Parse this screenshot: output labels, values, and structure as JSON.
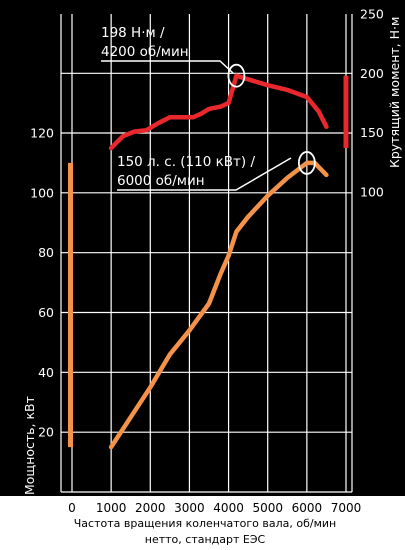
{
  "chart_data": {
    "type": "line",
    "x_label": "Частота вращения коленчатого вала, об/мин",
    "x_caption_line2": "нетто, стандарт ЕЭС",
    "y_left_label": "Мощность, кВт",
    "y_right_label": "Крутящий момент, Н·м",
    "x_ticks": [
      0,
      1000,
      2000,
      3000,
      4000,
      5000,
      6000,
      7000
    ],
    "y_left_ticks": [
      20,
      40,
      60,
      80,
      100,
      120
    ],
    "y_right_ticks": [
      100,
      150,
      200,
      250
    ],
    "x_range": [
      0,
      7000
    ],
    "y_left_range": [
      0,
      160
    ],
    "y_right_range": [
      0,
      250
    ],
    "grid": true,
    "colors": {
      "background": "#000000",
      "grid": "#ffffff",
      "power": "#f5924a",
      "torque": "#e8282d",
      "annotation": "#ffffff"
    },
    "series": [
      {
        "key": "torque",
        "axis": "right",
        "points": [
          [
            1000,
            137
          ],
          [
            1300,
            147
          ],
          [
            1600,
            151
          ],
          [
            1900,
            152
          ],
          [
            2200,
            158
          ],
          [
            2500,
            163
          ],
          [
            2800,
            163
          ],
          [
            3100,
            163
          ],
          [
            3300,
            166
          ],
          [
            3500,
            170
          ],
          [
            3800,
            172
          ],
          [
            4000,
            175
          ],
          [
            4200,
            198
          ],
          [
            4500,
            195
          ],
          [
            5000,
            190
          ],
          [
            5500,
            186
          ],
          [
            6000,
            180
          ],
          [
            6300,
            168
          ],
          [
            6500,
            155
          ]
        ]
      },
      {
        "key": "power",
        "axis": "left",
        "points": [
          [
            1000,
            15
          ],
          [
            1500,
            25
          ],
          [
            2000,
            35
          ],
          [
            2500,
            46
          ],
          [
            3000,
            54
          ],
          [
            3500,
            63
          ],
          [
            3800,
            73
          ],
          [
            4000,
            79
          ],
          [
            4200,
            87
          ],
          [
            4500,
            92
          ],
          [
            5000,
            99
          ],
          [
            5500,
            105
          ],
          [
            6000,
            110
          ],
          [
            6200,
            110
          ],
          [
            6500,
            106
          ]
        ]
      }
    ],
    "annotations": [
      {
        "lines": [
          "198 Н·м /",
          "4200 об/мин"
        ],
        "x": 4200,
        "y": 198,
        "axis": "right"
      },
      {
        "lines": [
          "150 л. с. (110 кВт) /",
          "6000 об/мин"
        ],
        "x": 6000,
        "y": 110,
        "axis": "left"
      }
    ],
    "range_bars": [
      {
        "axis": "left",
        "from": 15,
        "to": 110,
        "color": "#f5924a"
      },
      {
        "axis": "right",
        "from": 137,
        "to": 198,
        "color": "#e8282d"
      }
    ]
  }
}
